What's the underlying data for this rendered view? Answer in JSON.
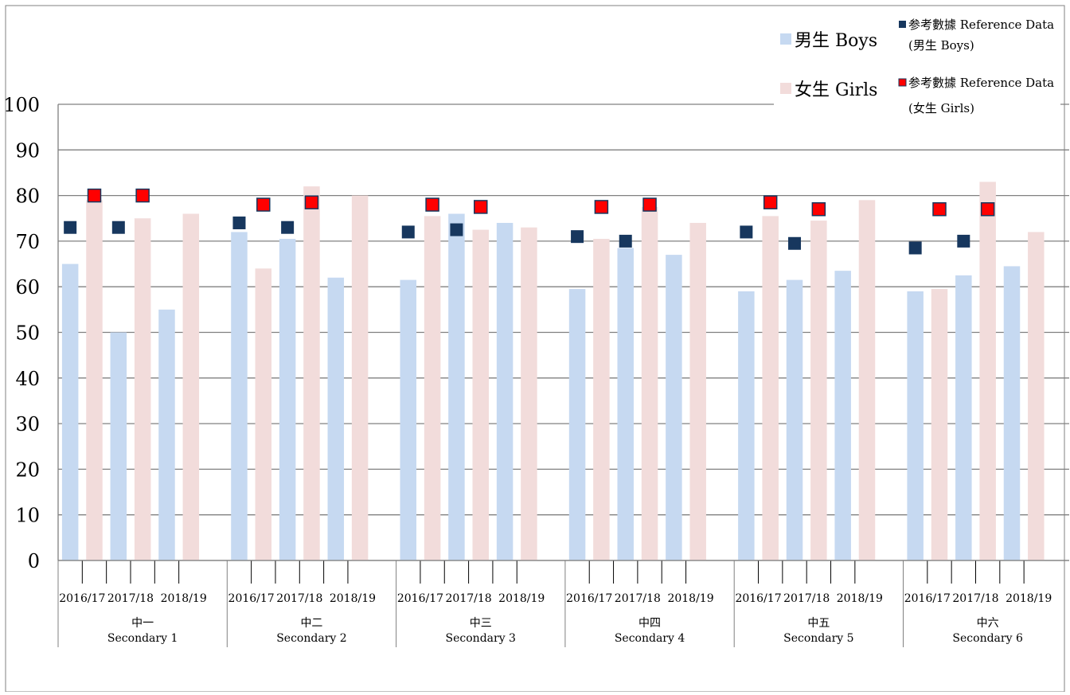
{
  "chart_data": {
    "type": "bar",
    "ylim": [
      0,
      100
    ],
    "yticks": [
      0,
      10,
      20,
      30,
      40,
      50,
      60,
      70,
      80,
      90,
      100
    ],
    "grid": true,
    "legend": {
      "placement": "top-right",
      "boys_label": "男生 Boys",
      "girls_label": "女生 Girls",
      "ref_boys_line1": "参考數據 Reference Data",
      "ref_boys_line2": "(男生 Boys)",
      "ref_girls_line1": "参考數據 Reference Data",
      "ref_girls_line2": "(女生 Girls)"
    },
    "colors": {
      "boys": "#c6d9f1",
      "girls": "#f2dcdb",
      "ref_boys": "#17375e",
      "ref_girls": "#ff0000",
      "ref_girls_border": "#17375e",
      "grid": "#808080",
      "axis": "#808080"
    },
    "year_labels": [
      "2016/17",
      "2017/18",
      "2018/19"
    ],
    "groups": [
      {
        "label_zh": "中一",
        "label_en": "Secondary 1",
        "boys": [
          65,
          50,
          55
        ],
        "girls": [
          79,
          75,
          76
        ],
        "ref_boys": [
          73,
          73
        ],
        "ref_girls": [
          80,
          80
        ]
      },
      {
        "label_zh": "中二",
        "label_en": "Secondary 2",
        "boys": [
          72,
          70.5,
          62
        ],
        "girls": [
          64,
          82,
          80
        ],
        "ref_boys": [
          74,
          73
        ],
        "ref_girls": [
          78,
          78.5
        ]
      },
      {
        "label_zh": "中三",
        "label_en": "Secondary 3",
        "boys": [
          61.5,
          76,
          74
        ],
        "girls": [
          75.5,
          72.5,
          73
        ],
        "ref_boys": [
          72,
          72.5
        ],
        "ref_girls": [
          78,
          77.5
        ]
      },
      {
        "label_zh": "中四",
        "label_en": "Secondary 4",
        "boys": [
          59.5,
          68.5,
          67
        ],
        "girls": [
          70.5,
          77.5,
          74
        ],
        "ref_boys": [
          71,
          70
        ],
        "ref_girls": [
          77.5,
          78
        ]
      },
      {
        "label_zh": "中五",
        "label_en": "Secondary 5",
        "boys": [
          59,
          61.5,
          63.5
        ],
        "girls": [
          75.5,
          74.5,
          79
        ],
        "ref_boys": [
          72,
          69.5
        ],
        "ref_girls": [
          78.5,
          77
        ]
      },
      {
        "label_zh": "中六",
        "label_en": "Secondary 6",
        "boys": [
          59,
          62.5,
          64.5
        ],
        "girls": [
          59.5,
          83,
          72
        ],
        "ref_boys": [
          68.5,
          70
        ],
        "ref_girls": [
          77,
          77
        ]
      }
    ]
  }
}
